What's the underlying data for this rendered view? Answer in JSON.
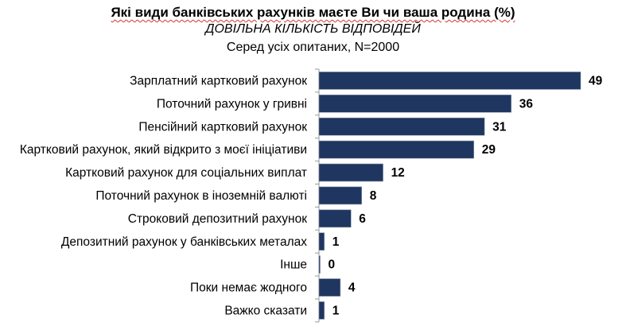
{
  "chart_data": {
    "type": "bar",
    "orientation": "horizontal",
    "title": "Які види банківських рахунків  маєте Ви  чи ваша родина (%)",
    "subtitle": "ДОВІЛЬНА КІЛЬКІСТЬ ВІДПОВІДЕЙ",
    "base": "Серед усіх опитаних, N=2000",
    "categories": [
      "Зарплатний картковий рахунок",
      "Поточний рахунок у гривні",
      "Пенсійний картковий рахунок",
      "Картковий рахунок, який відкрито з моєї ініціативи",
      "Картковий рахунок для соціальних виплат",
      "Поточний рахунок в іноземній валюті",
      "Строковий депозитний рахунок",
      "Депозитний рахунок у банківських металах",
      "Інше",
      "Поки немає жодного",
      "Важко сказати"
    ],
    "values": [
      49,
      36,
      31,
      29,
      12,
      8,
      6,
      1,
      0,
      4,
      1
    ],
    "data_labels": [
      "49",
      "36",
      "31",
      "29",
      "12",
      "8",
      "6",
      "1",
      "0",
      "4",
      "1"
    ],
    "xlim": [
      0,
      50
    ],
    "grid": false,
    "legend": "none",
    "bar_color": "#1f3660"
  }
}
